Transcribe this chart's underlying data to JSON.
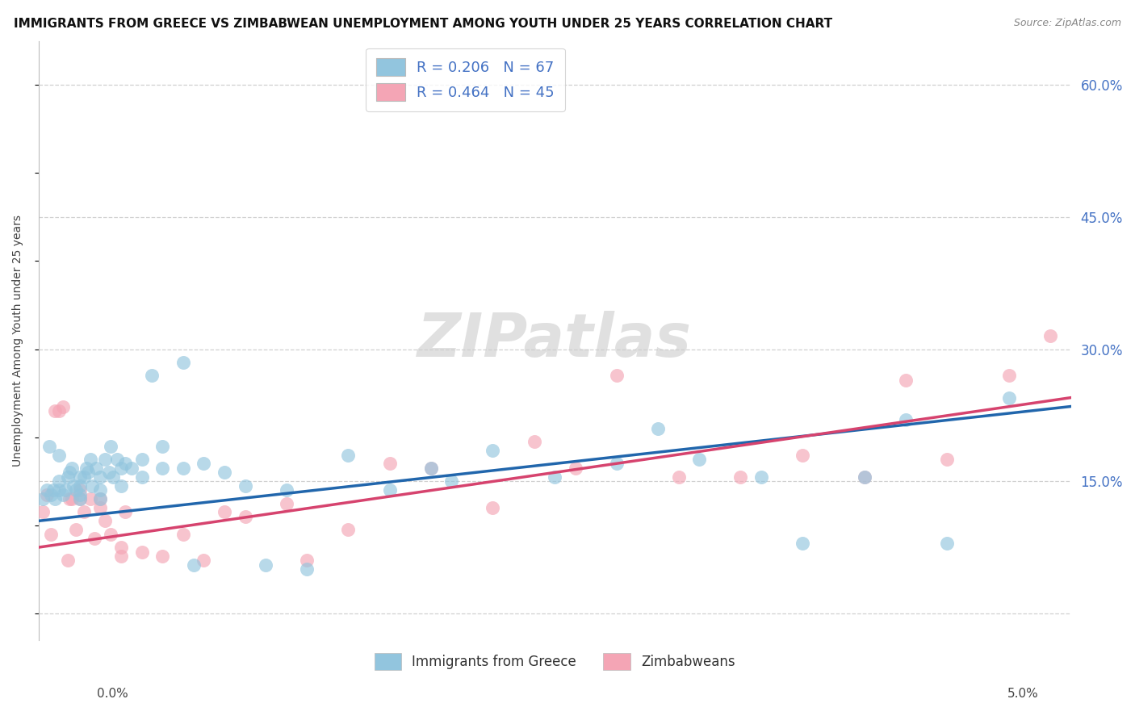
{
  "title": "IMMIGRANTS FROM GREECE VS ZIMBABWEAN UNEMPLOYMENT AMONG YOUTH UNDER 25 YEARS CORRELATION CHART",
  "source": "Source: ZipAtlas.com",
  "ylabel": "Unemployment Among Youth under 25 years",
  "yticks": [
    0.0,
    0.15,
    0.3,
    0.45,
    0.6
  ],
  "ytick_labels": [
    "",
    "15.0%",
    "30.0%",
    "45.0%",
    "60.0%"
  ],
  "xlim": [
    0.0,
    0.05
  ],
  "ylim": [
    -0.03,
    0.65
  ],
  "blue_scatter_x": [
    0.0002,
    0.0004,
    0.0005,
    0.0006,
    0.0007,
    0.0008,
    0.001,
    0.001,
    0.001,
    0.0012,
    0.0013,
    0.0014,
    0.0015,
    0.0016,
    0.0017,
    0.0018,
    0.002,
    0.002,
    0.002,
    0.002,
    0.0022,
    0.0023,
    0.0024,
    0.0025,
    0.0026,
    0.0028,
    0.003,
    0.003,
    0.003,
    0.0032,
    0.0034,
    0.0035,
    0.0036,
    0.0038,
    0.004,
    0.004,
    0.0042,
    0.0045,
    0.005,
    0.005,
    0.0055,
    0.006,
    0.006,
    0.007,
    0.007,
    0.0075,
    0.008,
    0.009,
    0.01,
    0.011,
    0.012,
    0.013,
    0.015,
    0.017,
    0.019,
    0.02,
    0.022,
    0.025,
    0.028,
    0.03,
    0.032,
    0.035,
    0.037,
    0.04,
    0.042,
    0.044,
    0.047
  ],
  "blue_scatter_y": [
    0.13,
    0.14,
    0.19,
    0.135,
    0.14,
    0.13,
    0.18,
    0.14,
    0.15,
    0.135,
    0.14,
    0.155,
    0.16,
    0.165,
    0.145,
    0.14,
    0.13,
    0.135,
    0.145,
    0.155,
    0.155,
    0.165,
    0.16,
    0.175,
    0.145,
    0.165,
    0.13,
    0.14,
    0.155,
    0.175,
    0.16,
    0.19,
    0.155,
    0.175,
    0.145,
    0.165,
    0.17,
    0.165,
    0.155,
    0.175,
    0.27,
    0.19,
    0.165,
    0.165,
    0.285,
    0.055,
    0.17,
    0.16,
    0.145,
    0.055,
    0.14,
    0.05,
    0.18,
    0.14,
    0.165,
    0.15,
    0.185,
    0.155,
    0.17,
    0.21,
    0.175,
    0.155,
    0.08,
    0.155,
    0.22,
    0.08,
    0.245
  ],
  "pink_scatter_x": [
    0.0002,
    0.0004,
    0.0006,
    0.0008,
    0.001,
    0.0012,
    0.0014,
    0.0015,
    0.0016,
    0.0018,
    0.002,
    0.002,
    0.0022,
    0.0025,
    0.0027,
    0.003,
    0.003,
    0.0032,
    0.0035,
    0.004,
    0.004,
    0.0042,
    0.005,
    0.006,
    0.007,
    0.008,
    0.009,
    0.01,
    0.012,
    0.013,
    0.015,
    0.017,
    0.019,
    0.022,
    0.024,
    0.026,
    0.028,
    0.031,
    0.034,
    0.037,
    0.04,
    0.042,
    0.044,
    0.047,
    0.049
  ],
  "pink_scatter_y": [
    0.115,
    0.135,
    0.09,
    0.23,
    0.23,
    0.235,
    0.06,
    0.13,
    0.13,
    0.095,
    0.13,
    0.14,
    0.115,
    0.13,
    0.085,
    0.13,
    0.12,
    0.105,
    0.09,
    0.065,
    0.075,
    0.115,
    0.07,
    0.065,
    0.09,
    0.06,
    0.115,
    0.11,
    0.125,
    0.06,
    0.095,
    0.17,
    0.165,
    0.12,
    0.195,
    0.165,
    0.27,
    0.155,
    0.155,
    0.18,
    0.155,
    0.265,
    0.175,
    0.27,
    0.315
  ],
  "blue_line_x": [
    0.0,
    0.05
  ],
  "blue_line_y": [
    0.105,
    0.235
  ],
  "pink_line_x": [
    0.0,
    0.05
  ],
  "pink_line_y": [
    0.075,
    0.245
  ],
  "blue_scatter_color": "#92c5de",
  "pink_scatter_color": "#f4a5b5",
  "blue_line_color": "#2166ac",
  "pink_line_color": "#d6436e",
  "watermark_text": "ZIPatlas",
  "watermark_fontsize": 54,
  "grid_color": "#d0d0d0",
  "right_tick_color": "#4472c4",
  "title_fontsize": 11,
  "source_fontsize": 9,
  "legend_r_label_1": "R = 0.206   N = 67",
  "legend_r_label_2": "R = 0.464   N = 45",
  "legend_bottom_label_1": "Immigrants from Greece",
  "legend_bottom_label_2": "Zimbabweans"
}
